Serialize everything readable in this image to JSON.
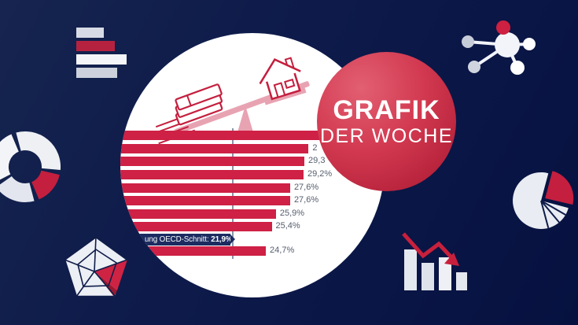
{
  "badge": {
    "line1": "GRAFIK",
    "line2": "DER WOCHE"
  },
  "chart_data": {
    "type": "bar",
    "orientation": "horizontal",
    "unit": "%",
    "title": "",
    "category_labels_visible": false,
    "bars": [
      {
        "value": 32.0,
        "label_visible": ""
      },
      {
        "value": 29.8,
        "label_visible": "2"
      },
      {
        "value": 29.3,
        "label_visible": "29,3"
      },
      {
        "value": 29.2,
        "label_visible": "29,2%"
      },
      {
        "value": 27.6,
        "label_visible": "27,6%"
      },
      {
        "value": 27.6,
        "label_visible": "27,6%"
      },
      {
        "value": 25.9,
        "label_visible": "25,9%"
      },
      {
        "value": 25.4,
        "label_visible": "25,4%"
      },
      {
        "value": 24.7,
        "label_visible": "24,7%"
      }
    ],
    "reference_line": {
      "value": 21.9,
      "label_prefix": "ung OECD-Schnitt: ",
      "label_value": "21,9%"
    },
    "legend_position": "none",
    "grid": false
  },
  "illustration": {
    "type": "seesaw-balance",
    "low_side": "banknotes-stack",
    "high_side": "house"
  },
  "icons": [
    "horizontal-bar-chart-icon",
    "donut-chart-icon",
    "radar-pentagon-chart-icon",
    "network-nodes-icon",
    "pie-chart-icon",
    "declining-bar-chart-icon"
  ],
  "colors": {
    "background_navy": "#0d1a4a",
    "bar_red": "#ce2145",
    "badge_red": "#c92d47",
    "outline_red": "#c41f3e",
    "ribbon_navy": "#1c2c61",
    "label_gray": "#565d6e",
    "beam_pink": "#e8a3b2",
    "white": "#ffffff"
  }
}
